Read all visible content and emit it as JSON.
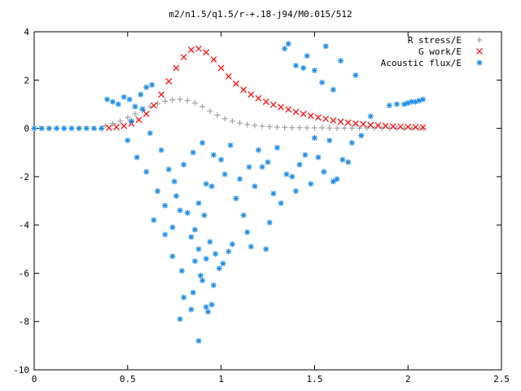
{
  "chart_data": {
    "type": "scatter",
    "title": "m2/n1.5/q1.5/r-+.18-j94/M0.015/512",
    "xlabel": "",
    "ylabel": "",
    "xlim": [
      0,
      2.5
    ],
    "ylim": [
      -10,
      4
    ],
    "xticks": [
      0,
      0.5,
      1,
      1.5,
      2,
      2.5
    ],
    "xtick_labels": [
      "0",
      "0.5",
      "1",
      "1.5",
      "2",
      "2.5"
    ],
    "yticks": [
      -10,
      -8,
      -6,
      -4,
      -2,
      0,
      2,
      4
    ],
    "ytick_labels": [
      "-10",
      "-8",
      "-6",
      "-4",
      "-2",
      "0",
      "2",
      "4"
    ],
    "grid": false,
    "legend_position": "top-right",
    "series": [
      {
        "name": "R stress/E",
        "marker": "+",
        "color": "#a0a0a0",
        "x": [
          0.38,
          0.42,
          0.46,
          0.5,
          0.54,
          0.58,
          0.62,
          0.66,
          0.7,
          0.74,
          0.78,
          0.82,
          0.86,
          0.9,
          0.94,
          0.98,
          1.02,
          1.06,
          1.1,
          1.14,
          1.18,
          1.22,
          1.26,
          1.3,
          1.34,
          1.38,
          1.42,
          1.46,
          1.5,
          1.54,
          1.58,
          1.62,
          1.66,
          1.7,
          1.74,
          1.78,
          1.82,
          1.86,
          1.9,
          1.94,
          1.98,
          2.02,
          2.06,
          2.08
        ],
        "y": [
          0.1,
          0.2,
          0.3,
          0.45,
          0.6,
          0.75,
          0.9,
          1.02,
          1.12,
          1.18,
          1.2,
          1.15,
          1.05,
          0.9,
          0.72,
          0.55,
          0.4,
          0.3,
          0.22,
          0.16,
          0.12,
          0.09,
          0.07,
          0.05,
          0.04,
          0.03,
          0.03,
          0.02,
          0.02,
          0.02,
          0.01,
          0.01,
          0.01,
          0.01,
          0.01,
          0.01,
          0.01,
          0.01,
          0.01,
          0.01,
          0.01,
          0.01,
          0.01,
          0.01
        ]
      },
      {
        "name": "G work/E",
        "marker": "x",
        "color": "#ff0000",
        "x": [
          0.4,
          0.44,
          0.48,
          0.52,
          0.56,
          0.6,
          0.64,
          0.68,
          0.72,
          0.76,
          0.8,
          0.84,
          0.88,
          0.92,
          0.96,
          1.0,
          1.04,
          1.08,
          1.12,
          1.16,
          1.2,
          1.24,
          1.28,
          1.32,
          1.36,
          1.4,
          1.44,
          1.48,
          1.52,
          1.56,
          1.6,
          1.64,
          1.68,
          1.72,
          1.76,
          1.8,
          1.84,
          1.88,
          1.92,
          1.96,
          2.0,
          2.04,
          2.08
        ],
        "y": [
          0.02,
          0.05,
          0.1,
          0.2,
          0.35,
          0.6,
          0.95,
          1.4,
          1.95,
          2.5,
          2.95,
          3.25,
          3.3,
          3.15,
          2.85,
          2.5,
          2.15,
          1.85,
          1.6,
          1.4,
          1.25,
          1.1,
          0.98,
          0.88,
          0.78,
          0.68,
          0.6,
          0.52,
          0.45,
          0.39,
          0.33,
          0.28,
          0.24,
          0.2,
          0.17,
          0.14,
          0.12,
          0.1,
          0.08,
          0.07,
          0.06,
          0.05,
          0.04
        ]
      },
      {
        "name": "Acoustic flux/E",
        "marker": "*",
        "color": "#1e8ce6",
        "x": [
          0.0,
          0.04,
          0.08,
          0.12,
          0.16,
          0.2,
          0.24,
          0.28,
          0.32,
          0.36,
          0.39,
          0.42,
          0.45,
          0.48,
          0.51,
          0.54,
          0.57,
          0.6,
          0.63,
          1.98,
          2.0,
          2.02,
          2.04,
          2.06,
          2.08,
          1.9,
          1.94,
          0.5,
          0.55,
          0.6,
          0.66,
          0.7,
          0.75,
          0.8,
          0.85,
          0.9,
          0.95,
          1.0,
          1.05,
          1.1,
          1.15,
          1.2,
          1.25,
          1.3,
          1.35,
          1.4,
          1.45,
          1.5,
          1.55,
          1.6,
          1.65,
          1.7,
          1.75,
          1.8,
          0.52,
          0.58,
          0.62,
          0.68,
          0.72,
          0.76,
          0.82,
          0.86,
          0.88,
          0.92,
          0.96,
          1.02,
          1.08,
          1.12,
          1.18,
          1.22,
          1.28,
          1.32,
          1.38,
          1.42,
          1.48,
          1.52,
          1.58,
          1.62,
          1.68,
          0.64,
          0.7,
          0.74,
          0.78,
          0.84,
          0.88,
          0.91,
          0.94,
          0.97,
          1.01,
          1.06,
          1.14,
          1.24,
          0.74,
          0.79,
          0.86,
          0.89,
          0.92,
          0.96,
          0.99,
          1.04,
          1.16,
          1.26,
          0.8,
          0.85,
          0.9,
          0.93,
          0.78,
          0.84,
          0.88,
          0.92,
          0.95,
          1.36,
          1.4,
          1.46,
          1.56,
          1.64,
          1.72,
          1.5,
          1.44,
          1.34,
          1.54,
          1.6
        ],
        "y": [
          0,
          0,
          0,
          0,
          0,
          0,
          0,
          0,
          0,
          0,
          1.2,
          1.1,
          1.0,
          1.3,
          1.2,
          0.9,
          1.4,
          1.7,
          1.8,
          1.0,
          1.05,
          1.1,
          1.1,
          1.15,
          1.2,
          0.95,
          1.0,
          -0.5,
          -1.2,
          -1.8,
          -2.6,
          -3.2,
          -2.2,
          -1.5,
          -1.0,
          -0.6,
          -2.4,
          -1.3,
          -0.7,
          -2.1,
          -1.6,
          -0.9,
          -1.4,
          -0.8,
          -1.9,
          -2.6,
          -1.1,
          -0.4,
          -1.8,
          -2.2,
          -1.3,
          -0.6,
          -0.3,
          0.5,
          0.3,
          0.8,
          -0.2,
          -0.9,
          -1.7,
          -2.8,
          -3.5,
          -4.2,
          -3.1,
          -2.3,
          -1.1,
          -1.9,
          -2.9,
          -3.6,
          -2.4,
          -1.6,
          -2.7,
          -3.1,
          -2.0,
          -1.5,
          -2.3,
          -1.2,
          -0.5,
          -2.1,
          -1.4,
          -3.8,
          -4.4,
          -4.1,
          -3.4,
          -4.5,
          -5.0,
          -3.6,
          -4.7,
          -5.2,
          -5.6,
          -4.8,
          -4.3,
          -5.0,
          -5.3,
          -5.9,
          -5.5,
          -6.1,
          -5.4,
          -6.5,
          -5.8,
          -5.1,
          -4.9,
          -3.9,
          -7.0,
          -6.8,
          -6.3,
          -7.6,
          -7.9,
          -7.5,
          -8.8,
          -7.4,
          -7.3,
          3.5,
          2.6,
          3.0,
          3.4,
          2.8,
          2.2,
          2.4,
          2.5,
          3.3,
          1.9,
          1.6
        ]
      }
    ]
  }
}
